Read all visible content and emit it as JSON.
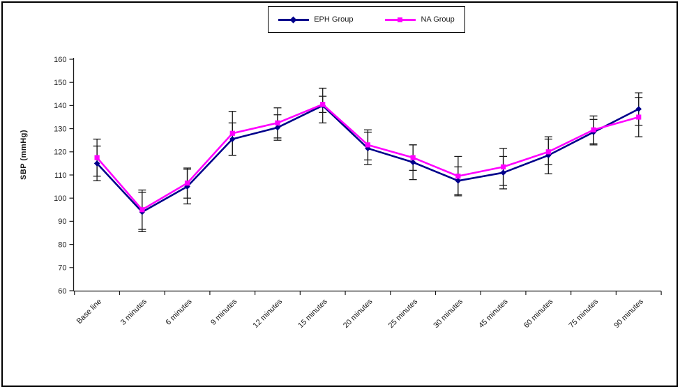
{
  "chart_data": {
    "type": "line",
    "title": "",
    "xlabel": "",
    "ylabel": "SBP (mmHg)",
    "ylim": [
      60,
      160
    ],
    "y_ticks": [
      60,
      70,
      80,
      90,
      100,
      110,
      120,
      130,
      140,
      150,
      160
    ],
    "grid": false,
    "legend_position": "top-center",
    "error_bar_color": "#1a1a1a",
    "axis_color": "#1a1a1a",
    "categories": [
      "Base line",
      "3 minutes",
      "6 minutes",
      "9 minutes",
      "12 minutes",
      "15 minutes",
      "20 minutes",
      "25 minutes",
      "30 minutes",
      "45 minutes",
      "60 minutes",
      "75 minutes",
      "90 minutes"
    ],
    "series": [
      {
        "name": "EPH Group",
        "color": "#00008B",
        "marker": "diamond",
        "values": [
          115,
          94,
          105,
          125.5,
          130.5,
          140,
          121.5,
          115.5,
          107.5,
          111,
          118.5,
          128.5,
          138.5
        ],
        "errors": [
          7.5,
          8.5,
          7.5,
          7,
          5.5,
          7.5,
          7,
          7.5,
          6,
          7,
          8,
          5.5,
          7
        ]
      },
      {
        "name": "NA Group",
        "color": "#FF00FF",
        "marker": "square",
        "values": [
          117.5,
          95,
          106.5,
          128,
          132.5,
          140.5,
          123,
          117.5,
          109.5,
          113.5,
          120,
          129.5,
          135
        ],
        "errors": [
          8,
          8.5,
          6.5,
          9.5,
          6.5,
          3.5,
          6.5,
          5.5,
          8.5,
          8,
          5.5,
          6,
          8.5
        ]
      }
    ]
  }
}
